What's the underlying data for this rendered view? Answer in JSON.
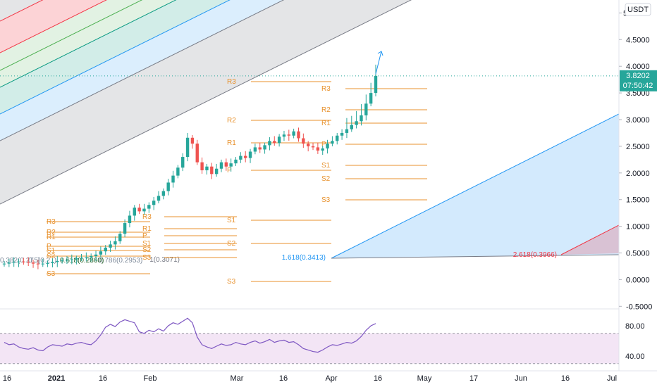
{
  "chart_data": [
    {
      "type": "candlestick",
      "title": "",
      "currency": "USDT",
      "y_scale": "linear",
      "ylim": [
        -0.65,
        5.15
      ],
      "y_ticks": [
        "5",
        "4.5000",
        "4.0000",
        "3.5000",
        "3.0000",
        "2.5000",
        "2.0000",
        "1.5000",
        "1.0000",
        "0.5000",
        "0.0000",
        "-0.5000"
      ],
      "last_price": "3.8202",
      "countdown": "07:50:42",
      "x_ticks": [
        "16",
        "2021",
        "16",
        "Feb",
        "Mar",
        "16",
        "Apr",
        "16",
        "May",
        "17",
        "Jun",
        "16",
        "Jul"
      ],
      "x_date_range": [
        "2020-12-10",
        "2021-07-02"
      ],
      "grid": false,
      "series_close": [
        0.3,
        0.32,
        0.33,
        0.34,
        0.33,
        0.32,
        0.3,
        0.29,
        0.3,
        0.31,
        0.33,
        0.35,
        0.36,
        0.37,
        0.38,
        0.4,
        0.41,
        0.42,
        0.44,
        0.47,
        0.53,
        0.6,
        0.66,
        0.72,
        0.86,
        1.06,
        1.2,
        1.35,
        1.28,
        1.33,
        1.4,
        1.48,
        1.57,
        1.66,
        1.82,
        1.95,
        2.1,
        2.3,
        2.66,
        2.55,
        2.2,
        2.05,
        2.12,
        1.98,
        2.08,
        2.2,
        2.12,
        2.18,
        2.25,
        2.32,
        2.28,
        2.4,
        2.48,
        2.44,
        2.52,
        2.6,
        2.56,
        2.68,
        2.72,
        2.7,
        2.78,
        2.65,
        2.55,
        2.5,
        2.48,
        2.42,
        2.46,
        2.55,
        2.6,
        2.7,
        2.75,
        2.82,
        2.9,
        2.97,
        3.08,
        3.3,
        3.5,
        3.82
      ],
      "fibonacci_channel": {
        "levels": [
          "1(0.3071)",
          "1.618(0.3413)",
          "2.618(0.3966)"
        ]
      },
      "pivot_points": {
        "labels": [
          "R3",
          "R2",
          "R1",
          "P",
          "S1",
          "S2",
          "S3"
        ]
      }
    },
    {
      "type": "line",
      "name": "",
      "ylim": [
        25,
        100
      ],
      "y_ticks": [
        "80.00",
        "40.00"
      ],
      "band": [
        30,
        70
      ],
      "values": [
        58,
        55,
        56,
        52,
        50,
        49,
        51,
        48,
        47,
        52,
        55,
        54,
        53,
        56,
        55,
        57,
        58,
        56,
        55,
        60,
        68,
        78,
        82,
        79,
        85,
        88,
        86,
        84,
        72,
        70,
        74,
        72,
        76,
        73,
        80,
        84,
        82,
        86,
        90,
        84,
        65,
        55,
        52,
        50,
        53,
        56,
        54,
        55,
        58,
        56,
        55,
        58,
        60,
        57,
        59,
        62,
        58,
        60,
        61,
        58,
        59,
        55,
        50,
        48,
        46,
        45,
        48,
        52,
        55,
        54,
        56,
        58,
        57,
        60,
        66,
        74,
        80,
        83
      ]
    }
  ]
}
